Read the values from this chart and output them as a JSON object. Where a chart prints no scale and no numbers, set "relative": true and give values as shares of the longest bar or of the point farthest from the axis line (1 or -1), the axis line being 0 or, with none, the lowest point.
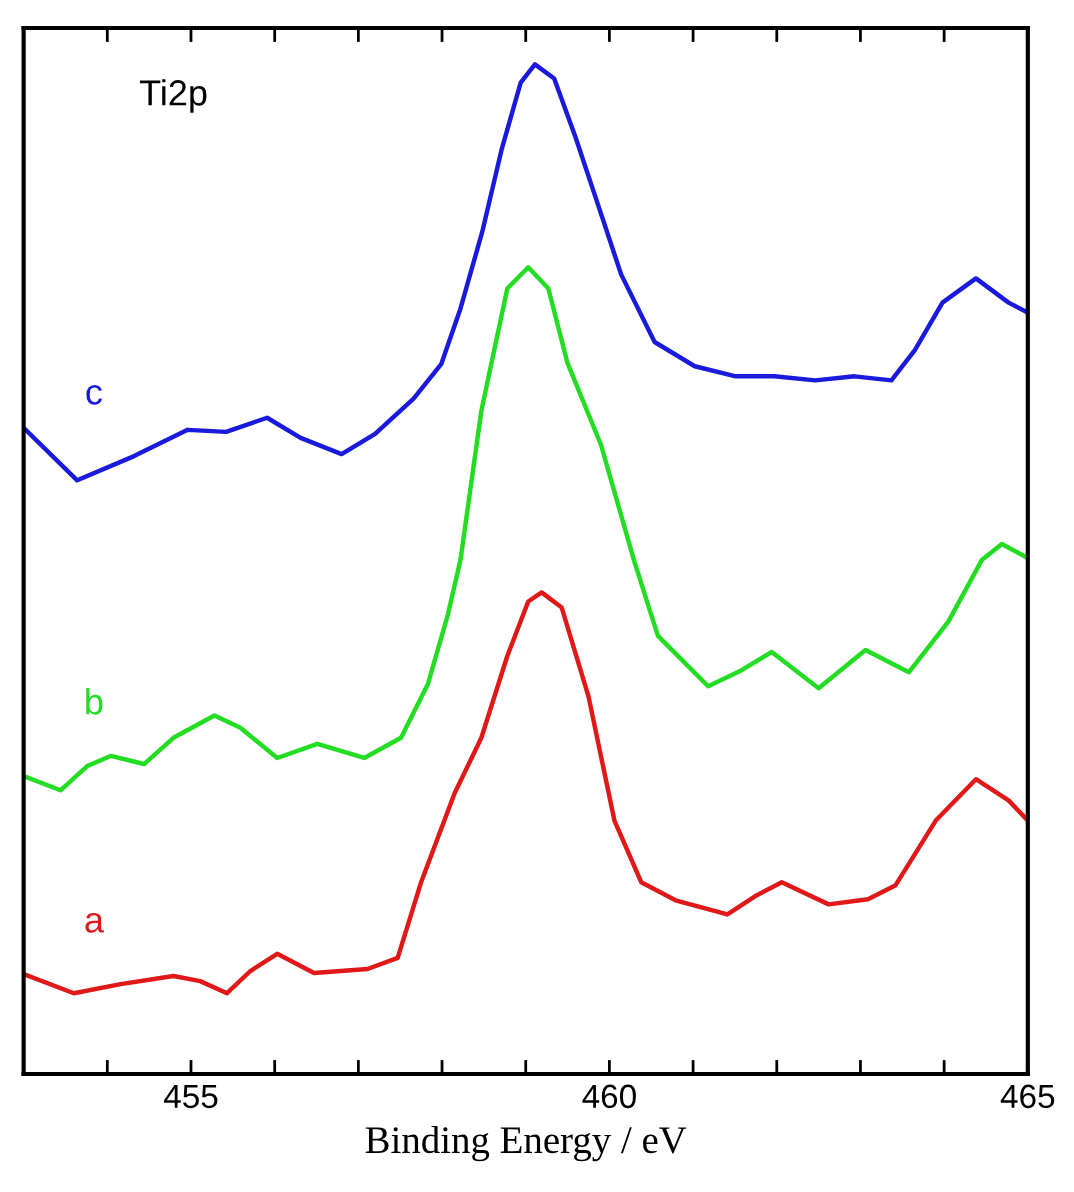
{
  "chart_data": {
    "type": "line",
    "relative": true,
    "xlabel": "Binding Energy / eV",
    "annotations": [
      "Ti2p"
    ],
    "xlim": [
      453,
      465
    ],
    "xticks": [
      {
        "value": 454,
        "label": null
      },
      455,
      {
        "value": 456,
        "label": null
      },
      {
        "value": 457,
        "label": null
      },
      {
        "value": 458,
        "label": null
      },
      {
        "value": 459,
        "label": null
      },
      460,
      {
        "value": 461,
        "label": null
      },
      {
        "value": 462,
        "label": null
      },
      {
        "value": 463,
        "label": null
      },
      {
        "value": 464,
        "label": null
      },
      465
    ],
    "grid": false,
    "legend": false,
    "marker": "none",
    "line_style": "solid",
    "series": [
      {
        "name": "a",
        "color": "#e01818",
        "x": [
          453.0,
          453.6,
          454.16,
          454.79,
          455.11,
          455.43,
          455.71,
          456.03,
          456.47,
          457.11,
          457.47,
          457.75,
          458.15,
          458.47,
          458.78,
          459.03,
          459.19,
          459.43,
          459.75,
          460.06,
          460.38,
          460.79,
          461.41,
          461.74,
          462.06,
          462.62,
          463.09,
          463.42,
          463.9,
          464.38,
          464.77,
          465.0
        ],
        "values": [
          0.099,
          0.08,
          0.089,
          0.097,
          0.092,
          0.08,
          0.102,
          0.119,
          0.1,
          0.104,
          0.115,
          0.19,
          0.278,
          0.333,
          0.414,
          0.468,
          0.477,
          0.462,
          0.374,
          0.251,
          0.19,
          0.172,
          0.158,
          0.176,
          0.19,
          0.168,
          0.173,
          0.187,
          0.251,
          0.292,
          0.271,
          0.251
        ]
      },
      {
        "name": "b",
        "color": "#22dd22",
        "x": [
          453.0,
          453.44,
          453.76,
          454.04,
          454.44,
          454.79,
          455.28,
          455.59,
          456.03,
          456.51,
          457.07,
          457.51,
          457.83,
          458.07,
          458.22,
          458.47,
          458.78,
          459.03,
          459.27,
          459.5,
          459.9,
          460.3,
          460.58,
          461.18,
          461.58,
          461.94,
          462.5,
          463.06,
          463.58,
          464.05,
          464.45,
          464.69,
          465.0
        ],
        "values": [
          0.295,
          0.281,
          0.305,
          0.315,
          0.307,
          0.333,
          0.355,
          0.343,
          0.313,
          0.327,
          0.313,
          0.333,
          0.386,
          0.455,
          0.509,
          0.657,
          0.778,
          0.799,
          0.778,
          0.704,
          0.623,
          0.507,
          0.434,
          0.384,
          0.4,
          0.418,
          0.382,
          0.42,
          0.398,
          0.448,
          0.509,
          0.525,
          0.511
        ]
      },
      {
        "name": "c",
        "color": "#1a1adc",
        "x": [
          453.0,
          453.64,
          454.32,
          454.96,
          455.42,
          455.91,
          456.31,
          456.8,
          457.2,
          457.66,
          457.99,
          458.22,
          458.48,
          458.71,
          458.94,
          459.11,
          459.34,
          459.59,
          459.84,
          460.14,
          460.54,
          461.02,
          461.51,
          461.97,
          462.46,
          462.93,
          463.37,
          463.65,
          463.98,
          464.38,
          464.77,
          465.0
        ],
        "values": [
          0.64,
          0.588,
          0.612,
          0.638,
          0.636,
          0.65,
          0.63,
          0.614,
          0.634,
          0.669,
          0.703,
          0.758,
          0.834,
          0.915,
          0.982,
          1.0,
          0.986,
          0.929,
          0.867,
          0.792,
          0.725,
          0.701,
          0.691,
          0.691,
          0.687,
          0.691,
          0.687,
          0.717,
          0.764,
          0.788,
          0.764,
          0.754
        ]
      }
    ]
  }
}
